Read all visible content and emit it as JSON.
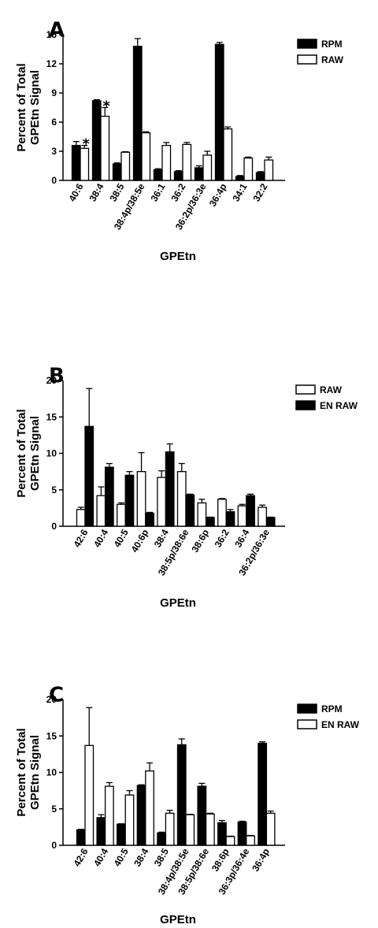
{
  "chart_data": [
    {
      "type": "bar",
      "panel_label": "A",
      "ylabel": "Percent of Total\nGPEtn Signal",
      "xlabel": "GPEtn",
      "ylim": [
        0,
        15
      ],
      "yticks": [
        0,
        3,
        6,
        9,
        12,
        15
      ],
      "categories": [
        "40:6",
        "38:4",
        "38:5",
        "38:4p/38:5e",
        "36:1",
        "36:2",
        "36:2p/36:3e",
        "36:4p",
        "34:1",
        "32:2"
      ],
      "legend_position": "top-right",
      "series": [
        {
          "name": "RPM",
          "fill": "#000000",
          "values": [
            3.6,
            8.2,
            1.7,
            13.8,
            1.1,
            0.9,
            1.3,
            14.0,
            0.4,
            0.8
          ],
          "errors": [
            0.4,
            0.1,
            0.1,
            0.8,
            0.1,
            0.1,
            0.2,
            0.2,
            0.1,
            0.1
          ]
        },
        {
          "name": "RAW",
          "fill": "#ffffff",
          "values": [
            3.3,
            6.6,
            2.9,
            4.9,
            3.6,
            3.7,
            2.6,
            5.3,
            2.3,
            2.1
          ],
          "errors": [
            0.3,
            0.9,
            0.05,
            0.1,
            0.3,
            0.2,
            0.4,
            0.2,
            0.1,
            0.3
          ]
        }
      ],
      "annotations": [
        {
          "text": "*",
          "category": "40:6",
          "series": "RAW"
        },
        {
          "text": "*",
          "category": "38:4",
          "series": "RAW"
        }
      ]
    },
    {
      "type": "bar",
      "panel_label": "B",
      "ylabel": "Percent of Total\nGPEtn Signal",
      "xlabel": "GPEtn",
      "ylim": [
        0,
        20
      ],
      "yticks": [
        0,
        5,
        10,
        15,
        20
      ],
      "categories": [
        "42:6",
        "40:4",
        "40:5",
        "40:6p",
        "38:4",
        "38:5p/38:6e",
        "38:6p",
        "36:2",
        "36:4",
        "36:2p/36:3e"
      ],
      "legend_position": "top-right",
      "series": [
        {
          "name": "RAW",
          "fill": "#ffffff",
          "values": [
            2.3,
            4.2,
            3.0,
            7.5,
            6.7,
            7.5,
            3.2,
            3.7,
            2.8,
            2.6
          ],
          "errors": [
            0.3,
            1.2,
            0.2,
            2.6,
            0.9,
            1.1,
            0.5,
            0.1,
            0.2,
            0.3
          ]
        },
        {
          "name": "EN RAW",
          "fill": "#000000",
          "values": [
            13.7,
            8.1,
            7.0,
            1.8,
            10.2,
            4.3,
            1.2,
            2.0,
            4.2,
            1.2
          ],
          "errors": [
            5.2,
            0.5,
            0.5,
            0.1,
            1.1,
            0.1,
            0.05,
            0.3,
            0.2,
            0.05
          ]
        }
      ]
    },
    {
      "type": "bar",
      "panel_label": "C",
      "ylabel": "Percent of Total\nGPEtn Signal",
      "xlabel": "GPEtn",
      "ylim": [
        0,
        20
      ],
      "yticks": [
        0,
        5,
        10,
        15,
        20
      ],
      "categories": [
        "42:6",
        "40:4",
        "40:5",
        "38:4",
        "38:5",
        "38:4p/38:5e",
        "38:5p/38:6e",
        "38:6p",
        "36:3p/36:4e",
        "36:4p"
      ],
      "legend_position": "top-right",
      "series": [
        {
          "name": "RPM",
          "fill": "#000000",
          "values": [
            2.1,
            3.8,
            2.9,
            8.2,
            1.7,
            13.8,
            8.1,
            3.1,
            3.2,
            14.0
          ],
          "errors": [
            0.1,
            0.4,
            0.05,
            0.1,
            0.1,
            0.8,
            0.4,
            0.3,
            0.1,
            0.2
          ]
        },
        {
          "name": "EN RAW",
          "fill": "#ffffff",
          "values": [
            13.7,
            8.1,
            6.9,
            10.2,
            4.4,
            4.2,
            4.3,
            1.2,
            1.3,
            4.4
          ],
          "errors": [
            5.2,
            0.5,
            0.6,
            1.1,
            0.4,
            0.05,
            0.1,
            0.05,
            0.05,
            0.3
          ]
        }
      ]
    }
  ]
}
